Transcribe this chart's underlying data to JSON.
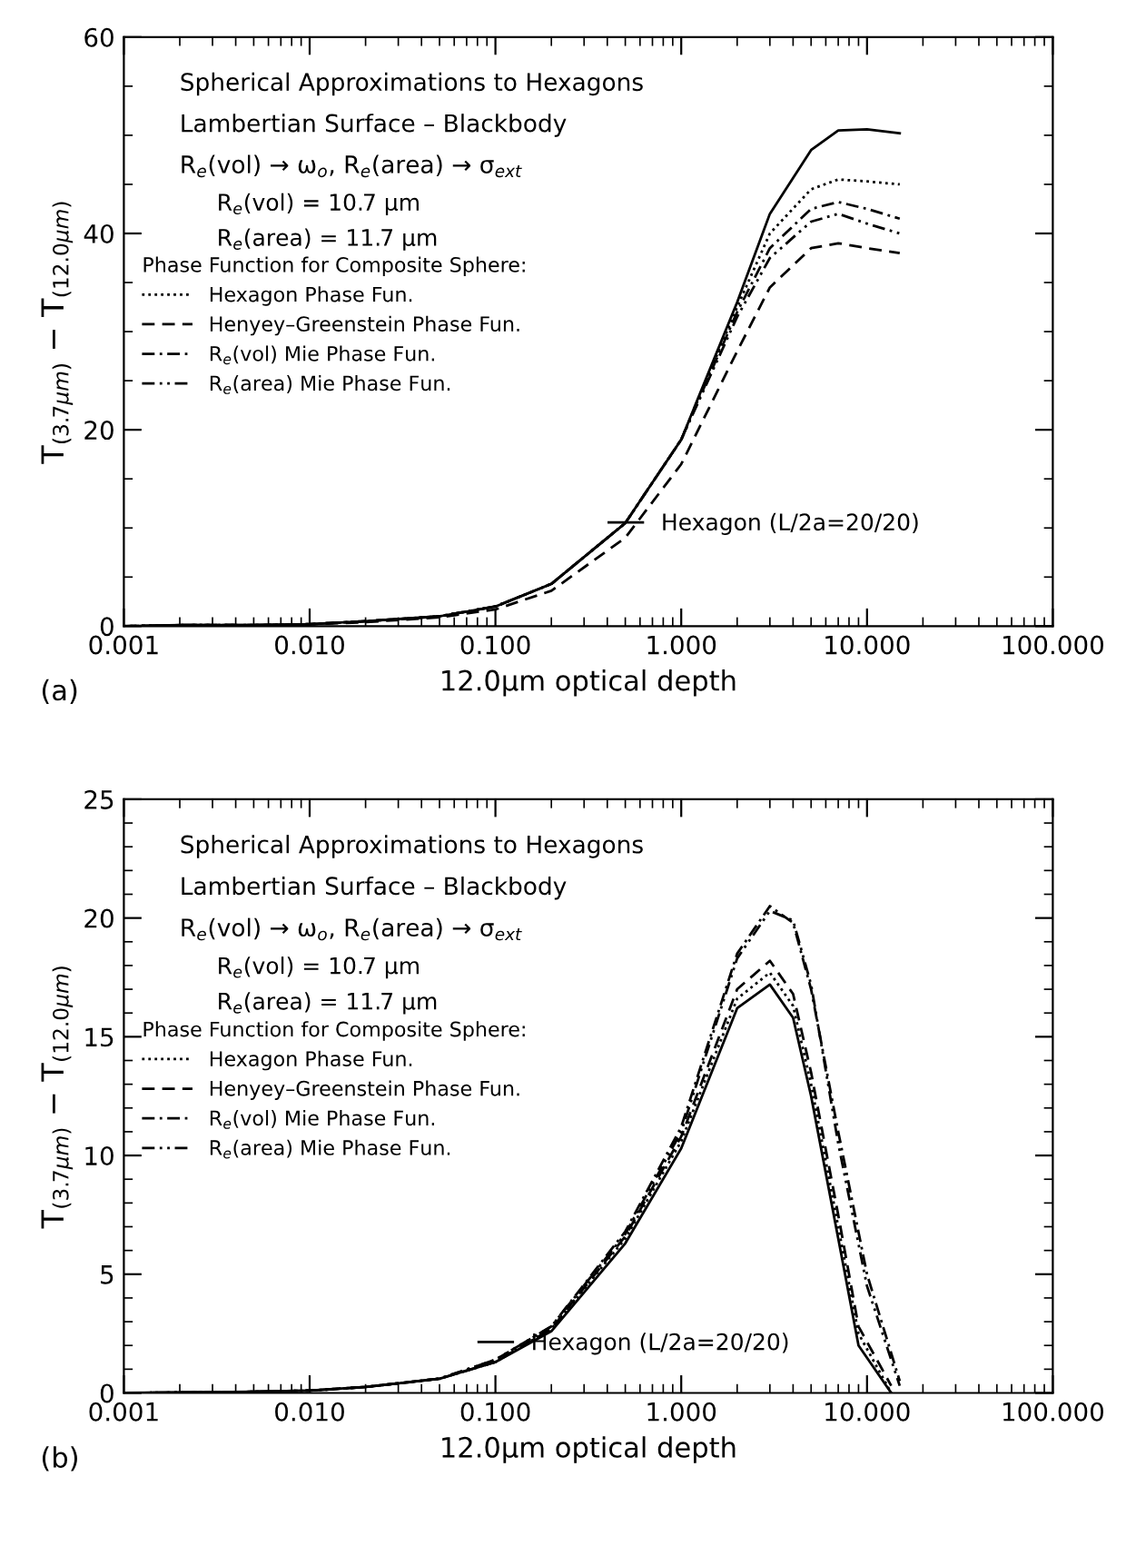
{
  "chart_data": [
    {
      "type": "line",
      "xlabel": "12.0μm optical depth",
      "ylabel": "T$_{(3.7μm)}$ − T$_{(12.0μm)}$",
      "log": "x",
      "xlim": [
        0.001,
        100
      ],
      "xticks": [
        {
          "value": 0.001,
          "label": "0.001"
        },
        {
          "value": 0.01,
          "label": "0.010"
        },
        {
          "value": 0.1,
          "label": "0.100"
        },
        {
          "value": 1,
          "label": "1.000"
        },
        {
          "value": 10,
          "label": "10.000"
        },
        {
          "value": 100,
          "label": "100.000"
        }
      ],
      "ylim": [
        0,
        60
      ],
      "yticks": [
        0,
        20,
        40,
        60
      ],
      "grid": false,
      "legend": "left",
      "legend_title": "Phase Function for Composite Sphere:",
      "marker": "none",
      "annotations": [
        "Spherical Approximations to Hexagons",
        "Lambertian Surface – Blackbody",
        "R$_{e}$(vol) → ω$_{o}$, R$_{e}$(area) → σ$_{ext}$",
        "R$_{e}$(vol) = 10.7 μm",
        "R$_{e}$(area) = 11.7 μm",
        "(a)"
      ],
      "series": [
        {
          "name": "Hexagon (L/2a=20/20)",
          "color": "#000000",
          "line_style": "solid",
          "x": [
            0.001,
            0.002,
            0.005,
            0.01,
            0.02,
            0.05,
            0.1,
            0.2,
            0.5,
            1,
            2,
            3,
            5,
            7,
            10,
            15
          ],
          "values": [
            0,
            0.1,
            0.1,
            0.2,
            0.5,
            1.0,
            2.0,
            4.3,
            10.5,
            19,
            33,
            42,
            48.5,
            50.5,
            50.6,
            50.2
          ]
        },
        {
          "name": "Hexagon Phase Fun.",
          "color": "#000000",
          "line_style": "dotted",
          "x": [
            0.001,
            0.002,
            0.005,
            0.01,
            0.02,
            0.05,
            0.1,
            0.2,
            0.5,
            1,
            2,
            3,
            5,
            7,
            10,
            15
          ],
          "values": [
            0,
            0.1,
            0.1,
            0.2,
            0.5,
            1.0,
            2.0,
            4.3,
            10.5,
            19,
            32.5,
            40,
            44.5,
            45.5,
            45.3,
            45
          ]
        },
        {
          "name": "Henyey–Greenstein Phase Fun.",
          "color": "#000000",
          "line_style": "dashed",
          "x": [
            0.001,
            0.002,
            0.005,
            0.01,
            0.02,
            0.05,
            0.1,
            0.2,
            0.5,
            1,
            2,
            3,
            5,
            7,
            10,
            15
          ],
          "values": [
            0,
            0.1,
            0.1,
            0.2,
            0.4,
            0.9,
            1.7,
            3.6,
            9,
            16.5,
            28,
            34.5,
            38.5,
            39,
            38.5,
            38
          ]
        },
        {
          "name": "R$_{e}$(vol) Mie Phase Fun.",
          "color": "#000000",
          "line_style": "dashdot",
          "x": [
            0.001,
            0.002,
            0.005,
            0.01,
            0.02,
            0.05,
            0.1,
            0.2,
            0.5,
            1,
            2,
            3,
            5,
            7,
            10,
            15
          ],
          "values": [
            0,
            0.1,
            0.1,
            0.2,
            0.5,
            1.0,
            2.0,
            4.3,
            10.5,
            19,
            32,
            38.5,
            42.5,
            43.2,
            42.5,
            41.5
          ]
        },
        {
          "name": "R$_{e}$(area) Mie Phase Fun.",
          "color": "#000000",
          "line_style": "dashdotdot",
          "x": [
            0.001,
            0.002,
            0.005,
            0.01,
            0.02,
            0.05,
            0.1,
            0.2,
            0.5,
            1,
            2,
            3,
            5,
            7,
            10,
            15
          ],
          "values": [
            0,
            0.1,
            0.1,
            0.2,
            0.5,
            1.0,
            2.0,
            4.3,
            10.5,
            19,
            31.5,
            37.5,
            41.2,
            42,
            41,
            40
          ]
        }
      ]
    },
    {
      "type": "line",
      "xlabel": "12.0μm optical depth",
      "ylabel": "T$_{(3.7μm)}$ − T$_{(12.0μm)}$",
      "log": "x",
      "xlim": [
        0.001,
        100
      ],
      "xticks": [
        {
          "value": 0.001,
          "label": "0.001"
        },
        {
          "value": 0.01,
          "label": "0.010"
        },
        {
          "value": 0.1,
          "label": "0.100"
        },
        {
          "value": 1,
          "label": "1.000"
        },
        {
          "value": 10,
          "label": "10.000"
        },
        {
          "value": 100,
          "label": "100.000"
        }
      ],
      "ylim": [
        0,
        25
      ],
      "yticks": [
        0,
        5,
        10,
        15,
        20,
        25
      ],
      "grid": false,
      "legend": "left",
      "legend_title": "Phase Function for Composite Sphere:",
      "marker": "none",
      "annotations": [
        "Spherical Approximations to Hexagons",
        "Lambertian Surface – Blackbody",
        "R$_{e}$(vol) → ω$_{o}$, R$_{e}$(area) → σ$_{ext}$",
        "R$_{e}$(vol) = 10.7 μm",
        "R$_{e}$(area) = 11.7 μm",
        "(b)"
      ],
      "series": [
        {
          "name": "Hexagon (L/2a=20/20)",
          "color": "#000000",
          "line_style": "solid",
          "x": [
            0.001,
            0.002,
            0.005,
            0.01,
            0.02,
            0.05,
            0.1,
            0.2,
            0.5,
            1,
            2,
            3,
            4,
            5,
            7,
            9,
            13.5
          ],
          "values": [
            0,
            0.02,
            0.05,
            0.1,
            0.25,
            0.6,
            1.3,
            2.6,
            6.3,
            10.3,
            16.2,
            17.2,
            15.8,
            12.5,
            6.5,
            2,
            0
          ]
        },
        {
          "name": "Hexagon Phase Fun.",
          "color": "#000000",
          "line_style": "dotted",
          "x": [
            0.001,
            0.002,
            0.005,
            0.01,
            0.02,
            0.05,
            0.1,
            0.2,
            0.5,
            1,
            2,
            3,
            4,
            5,
            7,
            9,
            13.5
          ],
          "values": [
            0,
            0.02,
            0.05,
            0.1,
            0.25,
            0.6,
            1.3,
            2.7,
            6.5,
            10.6,
            16.6,
            17.7,
            16.3,
            13,
            7,
            2.5,
            0
          ]
        },
        {
          "name": "Henyey–Greenstein Phase Fun.",
          "color": "#000000",
          "line_style": "dashed",
          "x": [
            0.001,
            0.002,
            0.005,
            0.01,
            0.02,
            0.05,
            0.1,
            0.2,
            0.5,
            1,
            2,
            3,
            4,
            5,
            7,
            9,
            13.5
          ],
          "values": [
            0,
            0.02,
            0.05,
            0.1,
            0.25,
            0.6,
            1.3,
            2.7,
            6.6,
            10.8,
            17,
            18.2,
            16.8,
            13.5,
            7.5,
            2.8,
            0.3
          ]
        },
        {
          "name": "R$_{e}$(vol) Mie Phase Fun.",
          "color": "#000000",
          "line_style": "dashdot",
          "x": [
            0.001,
            0.002,
            0.005,
            0.01,
            0.02,
            0.05,
            0.1,
            0.2,
            0.5,
            1,
            2,
            3,
            4,
            5,
            7,
            10,
            15
          ],
          "values": [
            0,
            0.02,
            0.05,
            0.1,
            0.25,
            0.6,
            1.4,
            2.8,
            6.8,
            11.2,
            18.5,
            20.5,
            19.8,
            17,
            11,
            5,
            0.5
          ]
        },
        {
          "name": "R$_{e}$(area) Mie Phase Fun.",
          "color": "#000000",
          "line_style": "dashdotdot",
          "x": [
            0.001,
            0.002,
            0.005,
            0.01,
            0.02,
            0.05,
            0.1,
            0.2,
            0.5,
            1,
            2,
            3,
            4,
            5,
            7,
            10,
            15
          ],
          "values": [
            0,
            0.02,
            0.05,
            0.1,
            0.25,
            0.6,
            1.4,
            2.8,
            6.7,
            11,
            18.3,
            20.3,
            19.9,
            17.2,
            10.5,
            4.5,
            0.3
          ]
        }
      ]
    }
  ]
}
